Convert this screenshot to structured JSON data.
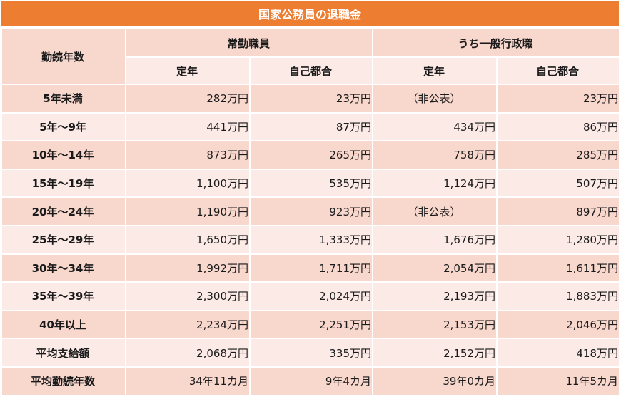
{
  "title": "国家公務員の退職金",
  "header": {
    "row_label": "勤続年数",
    "groups": [
      {
        "label": "常勤職員",
        "sub": [
          "定年",
          "自己都合"
        ]
      },
      {
        "label": "うち一般行政職",
        "sub": [
          "定年",
          "自己都合"
        ]
      }
    ]
  },
  "rows": [
    {
      "label": "5年未満",
      "values": [
        "282万円",
        "23万円",
        "（非公表）",
        "23万円"
      ]
    },
    {
      "label": "5年～9年",
      "values": [
        "441万円",
        "87万円",
        "434万円",
        "86万円"
      ]
    },
    {
      "label": "10年～14年",
      "values": [
        "873万円",
        "265万円",
        "758万円",
        "285万円"
      ]
    },
    {
      "label": "15年～19年",
      "values": [
        "1,100万円",
        "535万円",
        "1,124万円",
        "507万円"
      ]
    },
    {
      "label": "20年～24年",
      "values": [
        "1,190万円",
        "923万円",
        "（非公表）",
        "897万円"
      ]
    },
    {
      "label": "25年～29年",
      "values": [
        "1,650万円",
        "1,333万円",
        "1,676万円",
        "1,280万円"
      ]
    },
    {
      "label": "30年～34年",
      "values": [
        "1,992万円",
        "1,711万円",
        "2,054万円",
        "1,611万円"
      ]
    },
    {
      "label": "35年～39年",
      "values": [
        "2,300万円",
        "2,024万円",
        "2,193万円",
        "1,883万円"
      ]
    },
    {
      "label": "40年以上",
      "values": [
        "2,234万円",
        "2,251万円",
        "2,153万円",
        "2,046万円"
      ]
    },
    {
      "label": "平均支給額",
      "values": [
        "2,068万円",
        "335万円",
        "2,152万円",
        "418万円"
      ]
    },
    {
      "label": "平均勤続年数",
      "values": [
        "34年11カ月",
        "9年4カ月",
        "39年0カ月",
        "11年5カ月"
      ]
    }
  ],
  "colors": {
    "title_bg": "#ed7d31",
    "dark_row": "#f8d7cd",
    "light_row": "#fbeae6"
  }
}
